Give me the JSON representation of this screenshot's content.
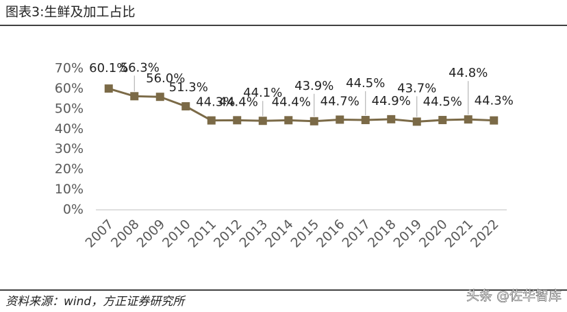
{
  "chart_data": {
    "type": "line",
    "title": "图表3:生鲜及加工占比",
    "source": "资料来源：wind，方正证券研究所",
    "watermark": "头条 @佐华智库",
    "categories": [
      "2007",
      "2008",
      "2009",
      "2010",
      "2011",
      "2012",
      "2013",
      "2014",
      "2015",
      "2016",
      "2017",
      "2018",
      "2019",
      "2020",
      "2021",
      "2022"
    ],
    "values": [
      60.1,
      56.3,
      56.0,
      51.3,
      44.3,
      44.4,
      44.1,
      44.4,
      43.9,
      44.7,
      44.5,
      44.9,
      43.7,
      44.5,
      44.8,
      44.3
    ],
    "value_labels": [
      "60.1%",
      "56.3%",
      "56.0%",
      "51.3%",
      "44.3%",
      "44.4%",
      "44.1%",
      "44.4%",
      "43.9%",
      "44.7%",
      "44.5%",
      "44.9%",
      "43.7%",
      "44.5%",
      "44.8%",
      "44.3%"
    ],
    "color": "#7b6a47",
    "ylim": [
      0,
      70
    ],
    "yticks": [
      {
        "value": 0,
        "label": "0%"
      },
      {
        "value": 10,
        "label": "10%"
      },
      {
        "value": 20,
        "label": "20%"
      },
      {
        "value": 30,
        "label": "30%"
      },
      {
        "value": 40,
        "label": "40%"
      },
      {
        "value": 50,
        "label": "50%"
      },
      {
        "value": 60,
        "label": "60%"
      },
      {
        "value": 70,
        "label": "70%"
      }
    ],
    "grid": false
  }
}
